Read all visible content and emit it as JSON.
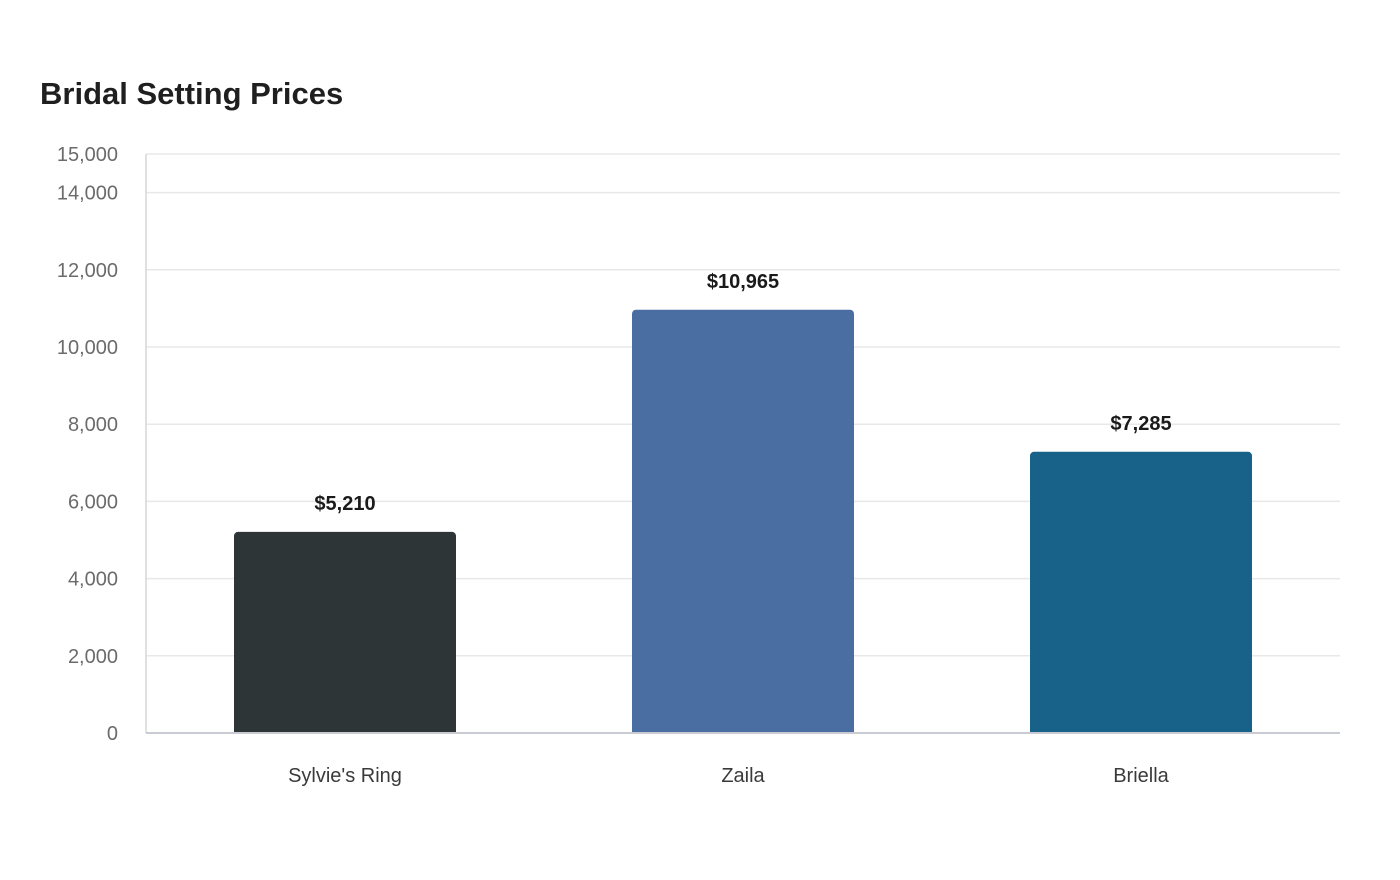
{
  "chart_data": {
    "type": "bar",
    "title": "Bridal Setting Prices",
    "categories": [
      "Sylvie's Ring",
      "Zaila",
      "Briella"
    ],
    "values": [
      5210,
      10965,
      7285
    ],
    "value_labels": [
      "$5,210",
      "$10,965",
      "$7,285"
    ],
    "colors": [
      "#2e3537",
      "#4b6ea2",
      "#186189"
    ],
    "ylim": [
      0,
      15000
    ],
    "yticks": [
      0,
      2000,
      4000,
      6000,
      8000,
      10000,
      12000,
      14000,
      15000
    ],
    "ytick_labels": [
      "0",
      "2,000",
      "4,000",
      "6,000",
      "8,000",
      "10,000",
      "12,000",
      "14,000",
      "15,000"
    ],
    "grid": true,
    "xlabel": "",
    "ylabel": ""
  }
}
